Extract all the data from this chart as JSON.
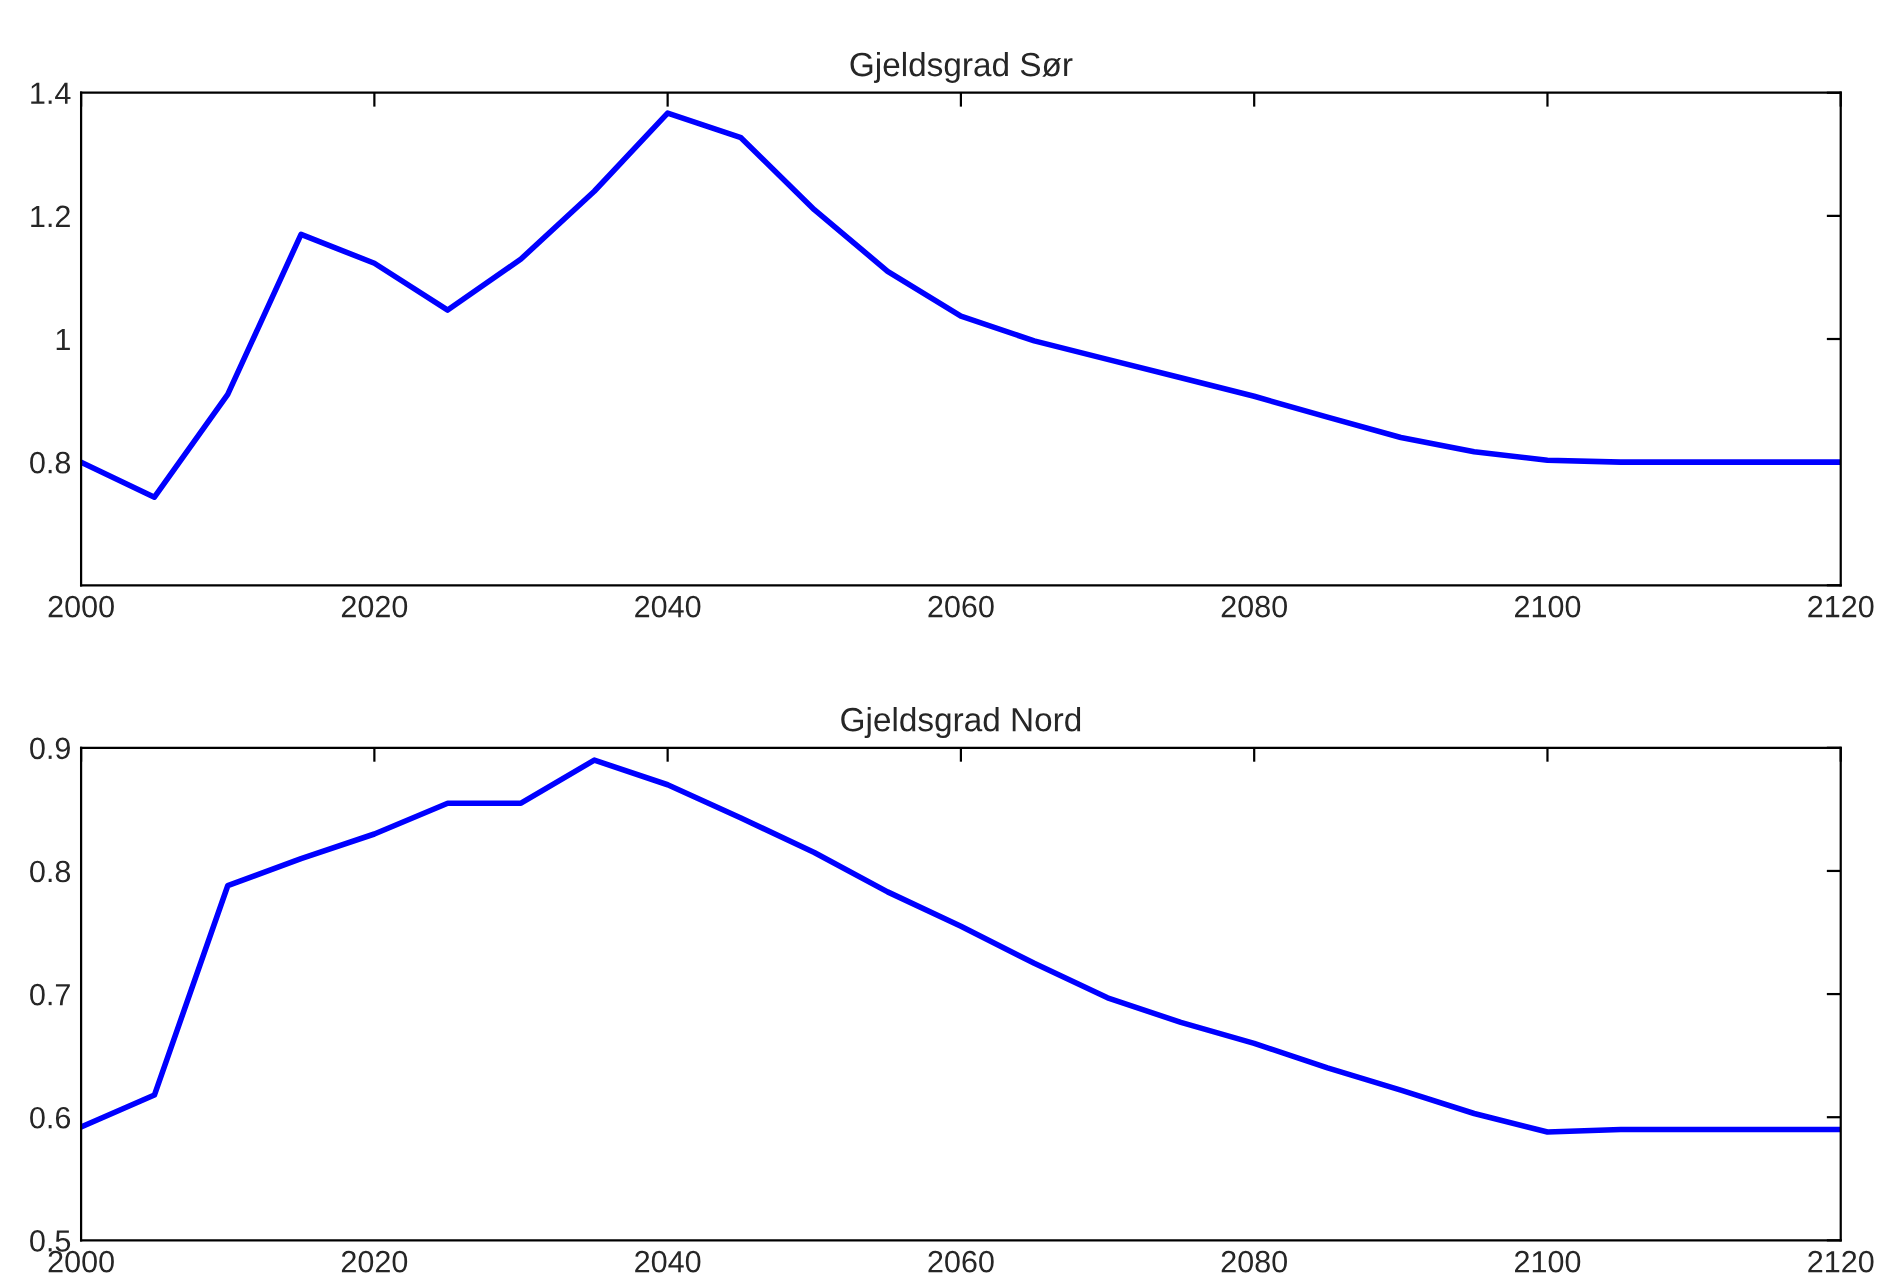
{
  "chart_data": [
    {
      "type": "line",
      "title": "Gjeldsgrad Sør",
      "x": [
        2000,
        2005,
        2010,
        2015,
        2020,
        2025,
        2030,
        2035,
        2040,
        2045,
        2050,
        2055,
        2060,
        2065,
        2070,
        2075,
        2080,
        2085,
        2090,
        2095,
        2100,
        2105,
        2110,
        2115,
        2120
      ],
      "series": [
        {
          "color": "#0000ff",
          "values": [
            0.8,
            0.743,
            0.91,
            1.17,
            1.123,
            1.047,
            1.13,
            1.24,
            1.367,
            1.327,
            1.21,
            1.11,
            1.037,
            0.997,
            0.967,
            0.937,
            0.907,
            0.873,
            0.84,
            0.817,
            0.803,
            0.8,
            0.8,
            0.8,
            0.8
          ]
        }
      ],
      "xlim": [
        2000,
        2120
      ],
      "xticks": [
        2000,
        2020,
        2040,
        2060,
        2080,
        2100,
        2120
      ],
      "ylim": [
        0.6,
        1.4
      ],
      "yticks": [
        {
          "value": 0.6,
          "label": null
        },
        0.8,
        1,
        1.2,
        1.4
      ],
      "grid": false,
      "legend": false
    },
    {
      "type": "line",
      "title": "Gjeldsgrad Nord",
      "x": [
        2000,
        2005,
        2010,
        2015,
        2020,
        2025,
        2030,
        2035,
        2040,
        2045,
        2050,
        2055,
        2060,
        2065,
        2070,
        2075,
        2080,
        2085,
        2090,
        2095,
        2100,
        2105,
        2110,
        2115,
        2120
      ],
      "series": [
        {
          "color": "#0000ff",
          "values": [
            0.592,
            0.618,
            0.788,
            0.81,
            0.83,
            0.855,
            0.855,
            0.89,
            0.87,
            0.843,
            0.815,
            0.783,
            0.755,
            0.725,
            0.697,
            0.677,
            0.66,
            0.64,
            0.622,
            0.603,
            0.588,
            0.59,
            0.59,
            0.59,
            0.59
          ]
        }
      ],
      "xlim": [
        2000,
        2120
      ],
      "xticks": [
        2000,
        2020,
        2040,
        2060,
        2080,
        2100,
        2120
      ],
      "ylim": [
        0.5,
        0.9
      ],
      "yticks": [
        0.5,
        0.6,
        0.7,
        0.8,
        0.9
      ],
      "grid": false,
      "legend": false
    }
  ]
}
